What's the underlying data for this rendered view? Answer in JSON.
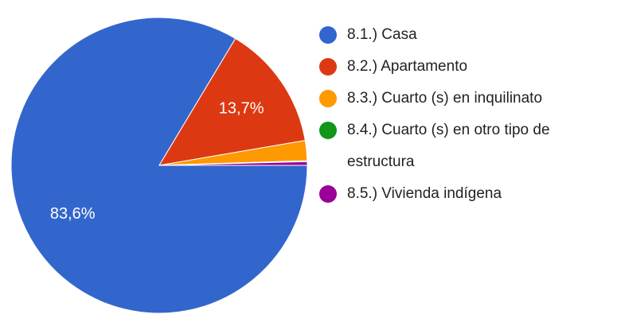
{
  "chart_data": {
    "type": "pie",
    "categories": [
      "8.1.) Casa",
      "8.2.) Apartamento",
      "8.3.) Cuarto (s) en inquilinato",
      "8.4.) Cuarto (s) en otro tipo de estructura",
      "8.5.) Vivienda indígena"
    ],
    "values": [
      83.6,
      13.7,
      2.2,
      0.1,
      0.4
    ],
    "value_labels": [
      "83,6%",
      "13,7%",
      null,
      null,
      null
    ],
    "colors": [
      "#3366cc",
      "#dc3912",
      "#ff9900",
      "#109618",
      "#990099"
    ],
    "legend": "right"
  }
}
